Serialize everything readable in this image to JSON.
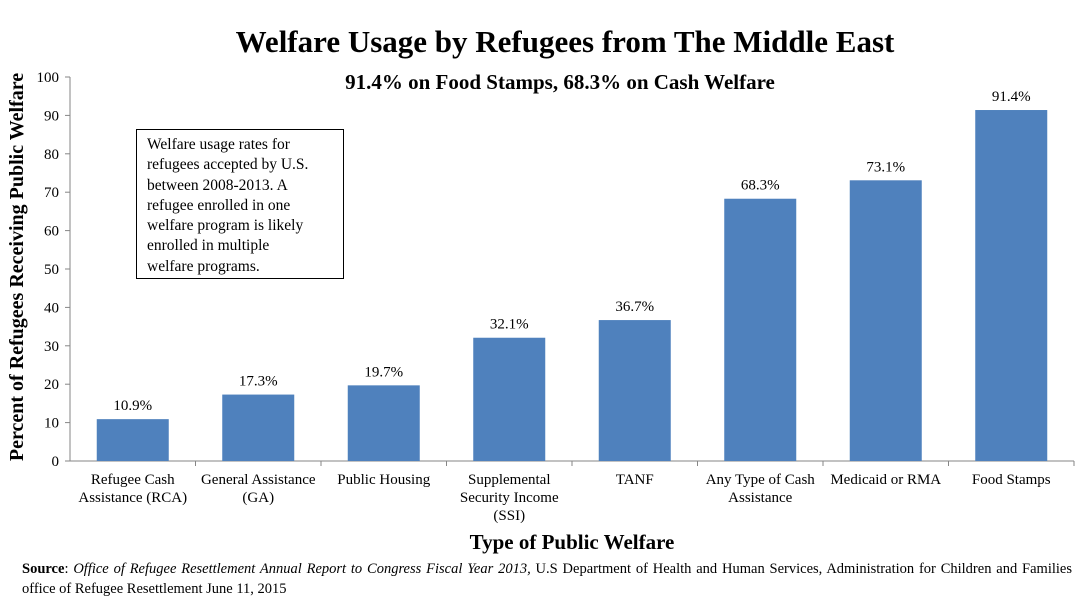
{
  "chart_data": {
    "type": "bar",
    "title": "Welfare Usage by Refugees from The Middle East",
    "subtitle": "91.4% on Food Stamps, 68.3% on Cash Welfare",
    "xlabel": "Type of Public Welfare",
    "ylabel": "Percent of Refugees Receiving Public Welfare",
    "ylim": [
      0,
      100
    ],
    "yticks": [
      0,
      10,
      20,
      30,
      40,
      50,
      60,
      70,
      80,
      90,
      100
    ],
    "bar_color": "#4f81bd",
    "categories": [
      [
        "Refugee Cash",
        "Assistance (RCA)"
      ],
      [
        "General Assistance",
        "(GA)"
      ],
      [
        "Public Housing"
      ],
      [
        "Supplemental",
        "Security Income",
        "(SSI)"
      ],
      [
        "TANF"
      ],
      [
        "Any Type of Cash",
        "Assistance"
      ],
      [
        "Medicaid or RMA"
      ],
      [
        "Food Stamps"
      ]
    ],
    "values": [
      10.9,
      17.3,
      19.7,
      32.1,
      36.7,
      68.3,
      73.1,
      91.4
    ],
    "data_labels": [
      "10.9%",
      "17.3%",
      "19.7%",
      "32.1%",
      "36.7%",
      "68.3%",
      "73.1%",
      "91.4%"
    ],
    "grid": false,
    "annotation": "Welfare usage rates for\nrefugees accepted by U.S.\nbetween 2008-2013. A\nrefugee enrolled in one\nwelfare program is likely\nenrolled in multiple\nwelfare programs."
  },
  "source": {
    "label": "Source",
    "italic": "Office of Refugee Resettlement Annual Report to Congress Fiscal Year 2013,",
    "rest": " U.S Department of Health and Human Services, Administration for Children and Families office of Refugee Resettlement June 11, 2015"
  }
}
